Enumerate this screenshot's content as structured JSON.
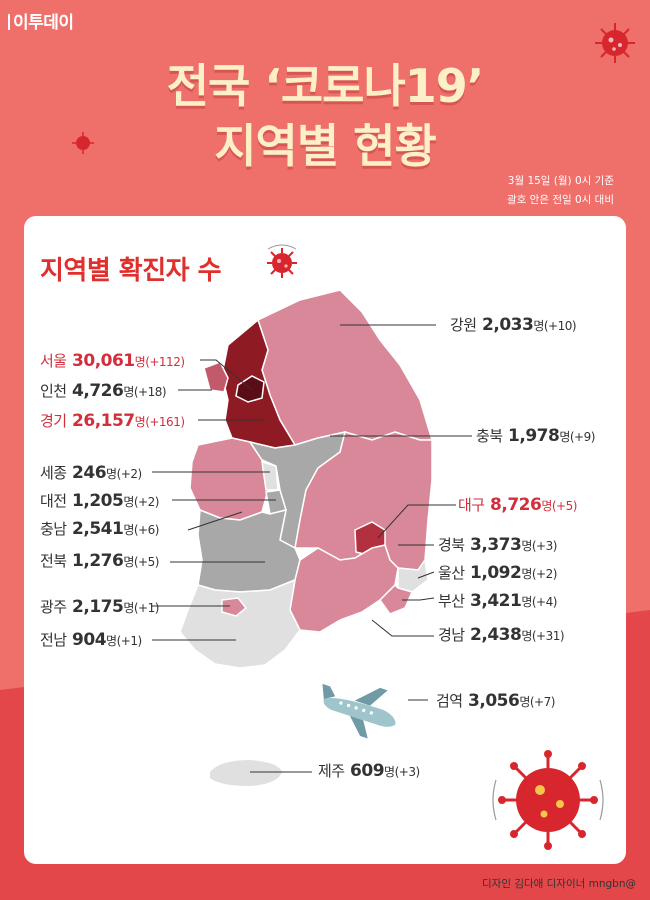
{
  "logo": "이투데이",
  "title": {
    "line1": "전국 ‘코로나19’",
    "line2": "지역별 현황"
  },
  "basis": {
    "line1": "3월 15일 (월) 0시 기준",
    "line2": "괄호 안은 전일 0시 대비"
  },
  "card_title": "지역별 확진자 수",
  "unit": "명",
  "colors": {
    "background": "#ef6f6b",
    "title": "#fdf0c8",
    "highlight": "#d12f3c",
    "dark_region": "#8e1a24",
    "mid_region": "#d88898",
    "gray_region": "#a8a8a8",
    "light_region": "#e0e0e0"
  },
  "regions": [
    {
      "name": "강원",
      "count": "2,033",
      "delta": "(+10)",
      "highlight": false
    },
    {
      "name": "서울",
      "count": "30,061",
      "delta": "(+112)",
      "highlight": true
    },
    {
      "name": "인천",
      "count": "4,726",
      "delta": "(+18)",
      "highlight": false
    },
    {
      "name": "경기",
      "count": "26,157",
      "delta": "(+161)",
      "highlight": true
    },
    {
      "name": "충북",
      "count": "1,978",
      "delta": "(+9)",
      "highlight": false
    },
    {
      "name": "세종",
      "count": "246",
      "delta": "(+2)",
      "highlight": false
    },
    {
      "name": "대전",
      "count": "1,205",
      "delta": "(+2)",
      "highlight": false
    },
    {
      "name": "충남",
      "count": "2,541",
      "delta": "(+6)",
      "highlight": false
    },
    {
      "name": "대구",
      "count": "8,726",
      "delta": "(+5)",
      "highlight": true
    },
    {
      "name": "경북",
      "count": "3,373",
      "delta": "(+3)",
      "highlight": false
    },
    {
      "name": "전북",
      "count": "1,276",
      "delta": "(+5)",
      "highlight": false
    },
    {
      "name": "울산",
      "count": "1,092",
      "delta": "(+2)",
      "highlight": false
    },
    {
      "name": "부산",
      "count": "3,421",
      "delta": "(+4)",
      "highlight": false
    },
    {
      "name": "광주",
      "count": "2,175",
      "delta": "(+1)",
      "highlight": false
    },
    {
      "name": "경남",
      "count": "2,438",
      "delta": "(+31)",
      "highlight": false
    },
    {
      "name": "전남",
      "count": "904",
      "delta": "(+1)",
      "highlight": false
    },
    {
      "name": "검역",
      "count": "3,056",
      "delta": "(+7)",
      "highlight": false
    },
    {
      "name": "제주",
      "count": "609",
      "delta": "(+3)",
      "highlight": false
    }
  ],
  "icons": [
    "virus-icon",
    "airplane-icon"
  ],
  "credit": "디자인 김다애 디자이너 mngbn@"
}
